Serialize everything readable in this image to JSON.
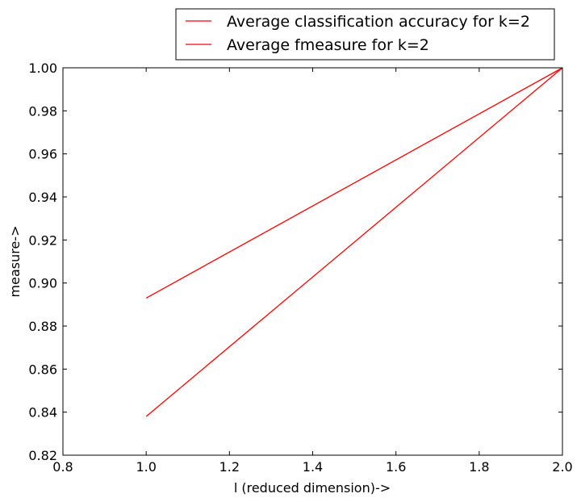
{
  "chart_data": {
    "type": "line",
    "title": "",
    "xlabel": "l (reduced dimension)->",
    "ylabel": "measure->",
    "xlim": [
      0.8,
      2.0
    ],
    "ylim": [
      0.82,
      1.0
    ],
    "xticks": [
      0.8,
      1.0,
      1.2,
      1.4,
      1.6,
      1.8,
      2.0
    ],
    "xtick_labels": [
      "0.8",
      "1.0",
      "1.2",
      "1.4",
      "1.6",
      "1.8",
      "2.0"
    ],
    "yticks": [
      0.82,
      0.84,
      0.86,
      0.88,
      0.9,
      0.92,
      0.94,
      0.96,
      0.98,
      1.0
    ],
    "ytick_labels": [
      "0.82",
      "0.84",
      "0.86",
      "0.88",
      "0.90",
      "0.92",
      "0.94",
      "0.96",
      "0.98",
      "1.00"
    ],
    "grid": false,
    "legend_position": "above plot, right",
    "series": [
      {
        "name": "Average classification accuracy for k=2",
        "color": "#ff0000",
        "x": [
          1.0,
          2.0
        ],
        "y": [
          0.893,
          1.0
        ]
      },
      {
        "name": "Average fmeasure for k=2",
        "color": "#ff0000",
        "x": [
          1.0,
          2.0
        ],
        "y": [
          0.838,
          1.0
        ]
      }
    ]
  }
}
